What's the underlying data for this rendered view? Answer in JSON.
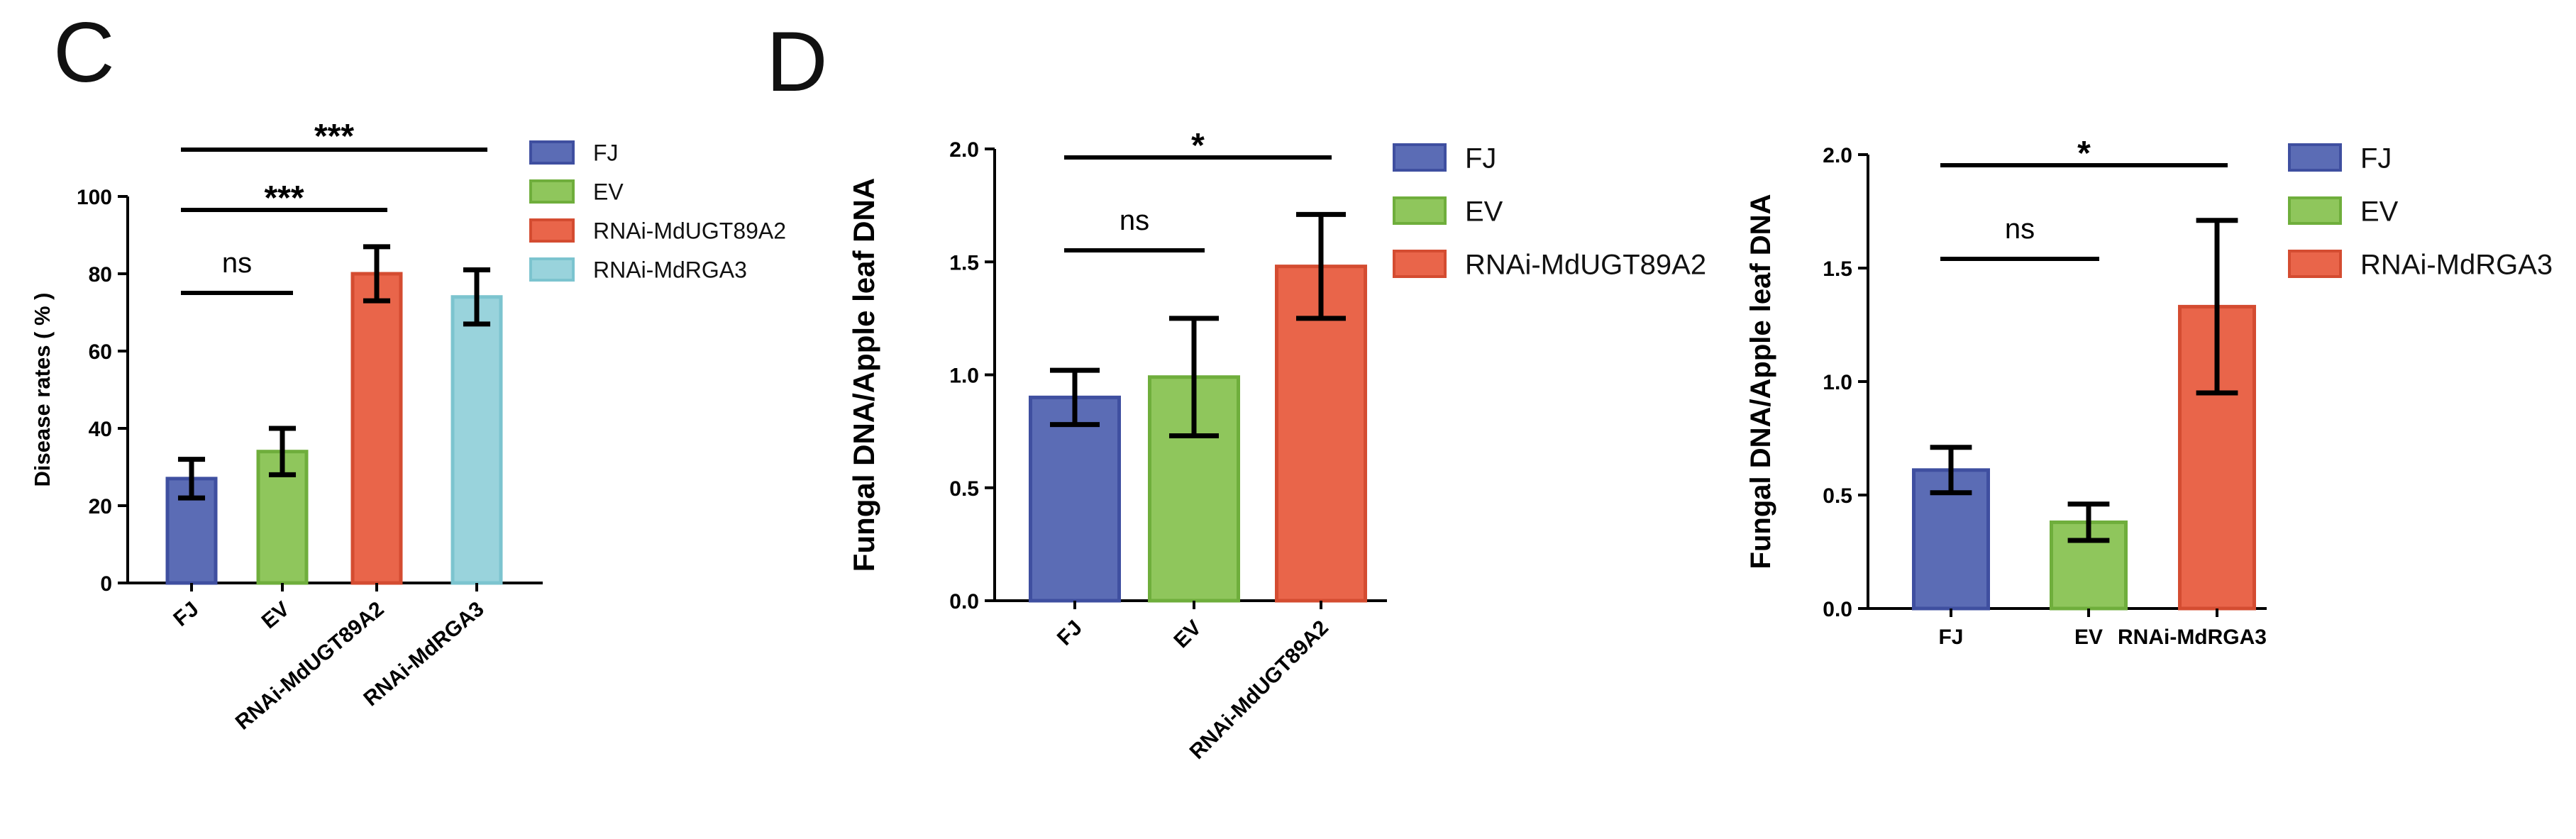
{
  "panels": {
    "C": {
      "letter": "C"
    },
    "D": {
      "letter": "D"
    }
  },
  "colors": {
    "FJ": {
      "fill": "#5b6cb5",
      "stroke": "#3f4fa0"
    },
    "EV": {
      "fill": "#8fc65c",
      "stroke": "#6fae3c"
    },
    "RNAi-MdUGT89A2": {
      "fill": "#e9654a",
      "stroke": "#d44c31"
    },
    "RNAi-MdRGA3": {
      "fill": "#99d3dc",
      "stroke": "#7cc4cf"
    },
    "RNAi-MdRGA3-D2": {
      "fill": "#e9654a",
      "stroke": "#d44c31"
    }
  },
  "chart_data": [
    {
      "type": "bar",
      "panel": "C",
      "ylabel": "Disease rates ( % )",
      "xlabel": "",
      "ylim": [
        0,
        100
      ],
      "yticks": [
        "0",
        "20",
        "40",
        "60",
        "80",
        "100"
      ],
      "categories": [
        "FJ",
        "EV",
        "RNAi-MdUGT89A2",
        "RNAi-MdRGA3"
      ],
      "values": [
        27,
        34,
        80,
        74
      ],
      "error": [
        5,
        6,
        7,
        7
      ],
      "legend": [
        "FJ",
        "EV",
        "RNAi-MdUGT89A2",
        "RNAi-MdRGA3"
      ],
      "legend_position": "right",
      "significance": [
        {
          "between": [
            "FJ",
            "EV"
          ],
          "label": "ns"
        },
        {
          "between": [
            "FJ",
            "RNAi-MdUGT89A2"
          ],
          "label": "***"
        },
        {
          "between": [
            "FJ",
            "RNAi-MdRGA3"
          ],
          "label": "***"
        }
      ]
    },
    {
      "type": "bar",
      "panel": "D",
      "ylabel": "Fungal DNA/Apple leaf DNA",
      "xlabel": "",
      "ylim": [
        0,
        2.0
      ],
      "yticks": [
        "0.0",
        "0.5",
        "1.0",
        "1.5",
        "2.0"
      ],
      "categories": [
        "FJ",
        "EV",
        "RNAi-MdUGT89A2"
      ],
      "values": [
        0.9,
        0.99,
        1.48
      ],
      "error": [
        0.12,
        0.26,
        0.23
      ],
      "legend": [
        "FJ",
        "EV",
        "RNAi-MdUGT89A2"
      ],
      "legend_position": "right",
      "significance": [
        {
          "between": [
            "FJ",
            "EV"
          ],
          "label": "ns"
        },
        {
          "between": [
            "FJ",
            "RNAi-MdUGT89A2"
          ],
          "label": "*"
        }
      ]
    },
    {
      "type": "bar",
      "panel": "D",
      "ylabel": "Fungal DNA/Apple leaf DNA",
      "xlabel": "",
      "ylim": [
        0,
        2.0
      ],
      "yticks": [
        "0.0",
        "0.5",
        "1.0",
        "1.5",
        "2.0"
      ],
      "categories": [
        "FJ",
        "EV",
        "RNAi-MdRGA3"
      ],
      "values": [
        0.61,
        0.38,
        1.33
      ],
      "error": [
        0.1,
        0.08,
        0.38
      ],
      "legend": [
        "FJ",
        "EV",
        "RNAi-MdRGA3"
      ],
      "legend_position": "right",
      "significance": [
        {
          "between": [
            "FJ",
            "EV"
          ],
          "label": "ns"
        },
        {
          "between": [
            "FJ",
            "RNAi-MdRGA3"
          ],
          "label": "*"
        }
      ]
    }
  ]
}
